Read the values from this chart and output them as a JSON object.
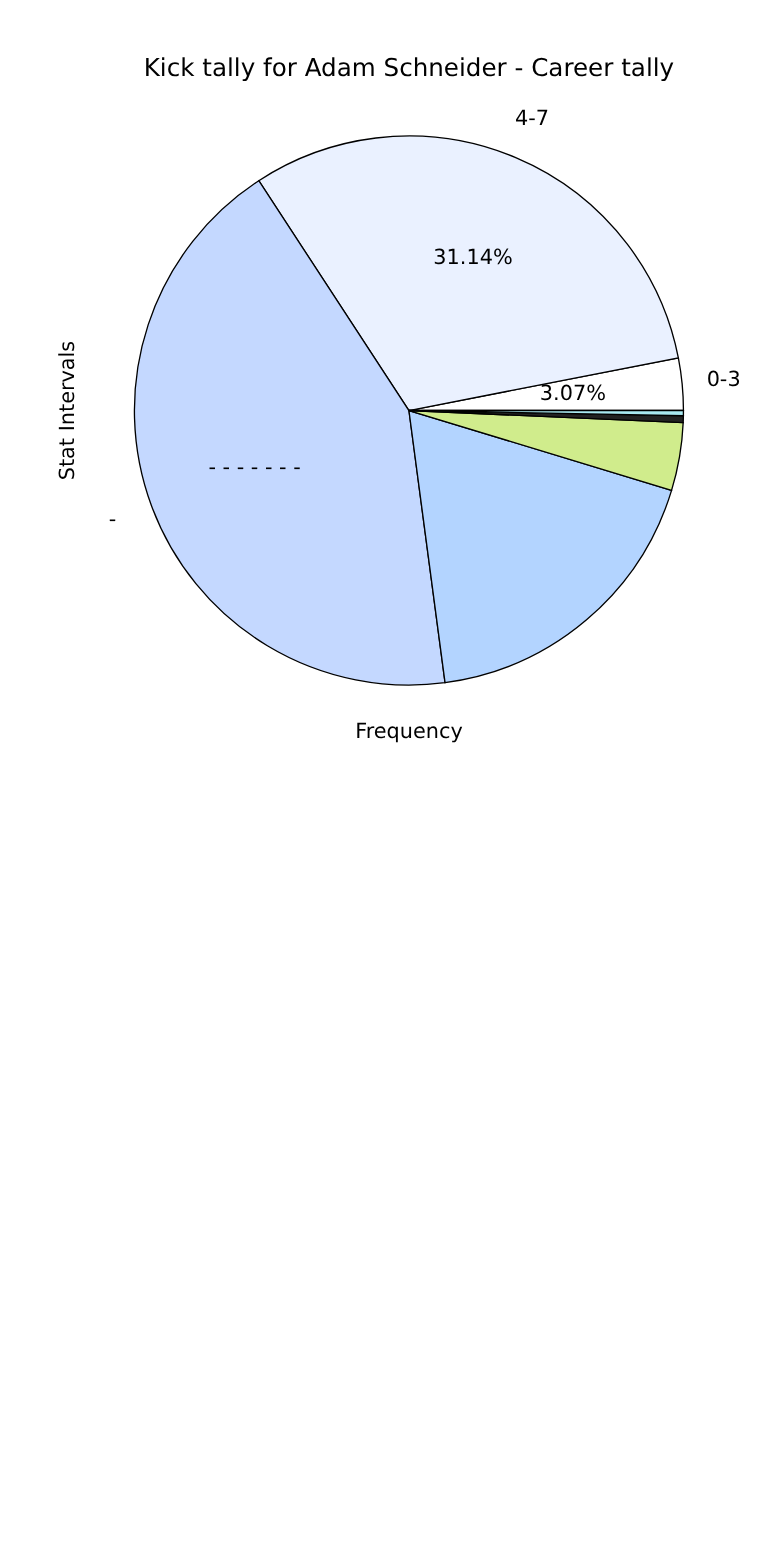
{
  "chart_data": {
    "type": "pie",
    "title": "Kick tally for Adam Schneider - Career tally",
    "xlabel": "Frequency",
    "ylabel": "Stat Intervals",
    "categories": [
      "0-3",
      "4-7",
      "-",
      null,
      null,
      null,
      null
    ],
    "values": [
      3.07,
      31.14,
      42.89,
      18.2,
      4.0,
      0.4,
      0.3
    ],
    "colors": [
      "#ffffff",
      "#eaf1ff",
      "#c4d8ff",
      "#b3d4ff",
      "#d0ec8c",
      "#222222",
      "#a8e8f0"
    ],
    "value_labels": [
      "3.07%",
      "31.14%",
      "- - -  - - - -",
      null,
      null,
      null,
      null
    ],
    "legend": false
  }
}
